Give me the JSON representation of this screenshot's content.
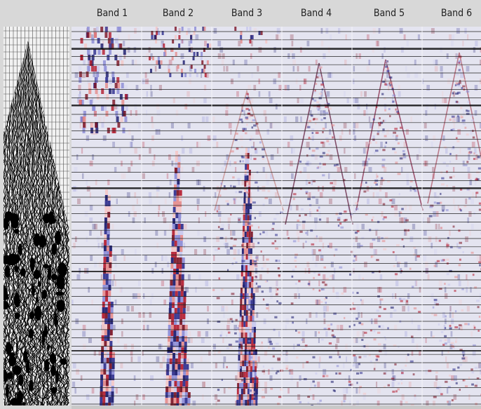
{
  "header": {
    "bands": [
      "Band 1",
      "Band 2",
      "Band 3",
      "Band 4",
      "Band 5",
      "Band 6"
    ]
  }
}
